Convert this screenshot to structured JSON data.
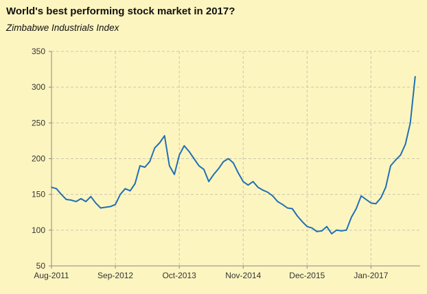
{
  "chart_data": {
    "type": "line",
    "title": "World's best performing stock market in 2017?",
    "subtitle": "Zimbabwe Industrials Index",
    "xlabel": "",
    "ylabel": "",
    "ylim": [
      50,
      350
    ],
    "yticks": [
      50,
      100,
      150,
      200,
      250,
      300,
      350
    ],
    "xlim": [
      "2011-08",
      "2017-11"
    ],
    "xticks": [
      {
        "label": "Aug-2011",
        "value": "2011-08"
      },
      {
        "label": "Sep-2012",
        "value": "2012-09"
      },
      {
        "label": "Oct-2013",
        "value": "2013-10"
      },
      {
        "label": "Nov-2014",
        "value": "2014-11"
      },
      {
        "label": "Dec-2015",
        "value": "2015-12"
      },
      {
        "label": "Jan-2017",
        "value": "2017-01"
      }
    ],
    "grid": true,
    "legend": "none",
    "colors": {
      "line": "#1f6fb5",
      "grid": "#c9c6ad",
      "background": "#fdf5c0"
    },
    "series": [
      {
        "values": [
          [
            "2011-08",
            160
          ],
          [
            "2011-09",
            158
          ],
          [
            "2011-10",
            150
          ],
          [
            "2011-11",
            143
          ],
          [
            "2011-12",
            142
          ],
          [
            "2012-01",
            140
          ],
          [
            "2012-02",
            144
          ],
          [
            "2012-03",
            140
          ],
          [
            "2012-04",
            147
          ],
          [
            "2012-05",
            138
          ],
          [
            "2012-06",
            131
          ],
          [
            "2012-07",
            132
          ],
          [
            "2012-08",
            133
          ],
          [
            "2012-09",
            136
          ],
          [
            "2012-10",
            150
          ],
          [
            "2012-11",
            158
          ],
          [
            "2012-12",
            155
          ],
          [
            "2013-01",
            165
          ],
          [
            "2013-02",
            190
          ],
          [
            "2013-03",
            188
          ],
          [
            "2013-04",
            196
          ],
          [
            "2013-05",
            215
          ],
          [
            "2013-06",
            222
          ],
          [
            "2013-07",
            232
          ],
          [
            "2013-08",
            190
          ],
          [
            "2013-09",
            178
          ],
          [
            "2013-10",
            205
          ],
          [
            "2013-11",
            218
          ],
          [
            "2013-12",
            210
          ],
          [
            "2014-01",
            200
          ],
          [
            "2014-02",
            190
          ],
          [
            "2014-03",
            185
          ],
          [
            "2014-04",
            168
          ],
          [
            "2014-05",
            178
          ],
          [
            "2014-06",
            186
          ],
          [
            "2014-07",
            196
          ],
          [
            "2014-08",
            200
          ],
          [
            "2014-09",
            194
          ],
          [
            "2014-10",
            180
          ],
          [
            "2014-11",
            168
          ],
          [
            "2014-12",
            163
          ],
          [
            "2015-01",
            168
          ],
          [
            "2015-02",
            160
          ],
          [
            "2015-03",
            156
          ],
          [
            "2015-04",
            153
          ],
          [
            "2015-05",
            148
          ],
          [
            "2015-06",
            140
          ],
          [
            "2015-07",
            136
          ],
          [
            "2015-08",
            131
          ],
          [
            "2015-09",
            130
          ],
          [
            "2015-10",
            120
          ],
          [
            "2015-11",
            112
          ],
          [
            "2015-12",
            105
          ],
          [
            "2016-01",
            103
          ],
          [
            "2016-02",
            98
          ],
          [
            "2016-03",
            99
          ],
          [
            "2016-04",
            105
          ],
          [
            "2016-05",
            95
          ],
          [
            "2016-06",
            100
          ],
          [
            "2016-07",
            99
          ],
          [
            "2016-08",
            100
          ],
          [
            "2016-09",
            118
          ],
          [
            "2016-10",
            130
          ],
          [
            "2016-11",
            148
          ],
          [
            "2016-12",
            143
          ],
          [
            "2017-01",
            138
          ],
          [
            "2017-02",
            137
          ],
          [
            "2017-03",
            145
          ],
          [
            "2017-04",
            160
          ],
          [
            "2017-05",
            190
          ],
          [
            "2017-06",
            198
          ],
          [
            "2017-07",
            205
          ],
          [
            "2017-08",
            220
          ],
          [
            "2017-09",
            250
          ],
          [
            "2017-10",
            315
          ]
        ]
      }
    ]
  }
}
